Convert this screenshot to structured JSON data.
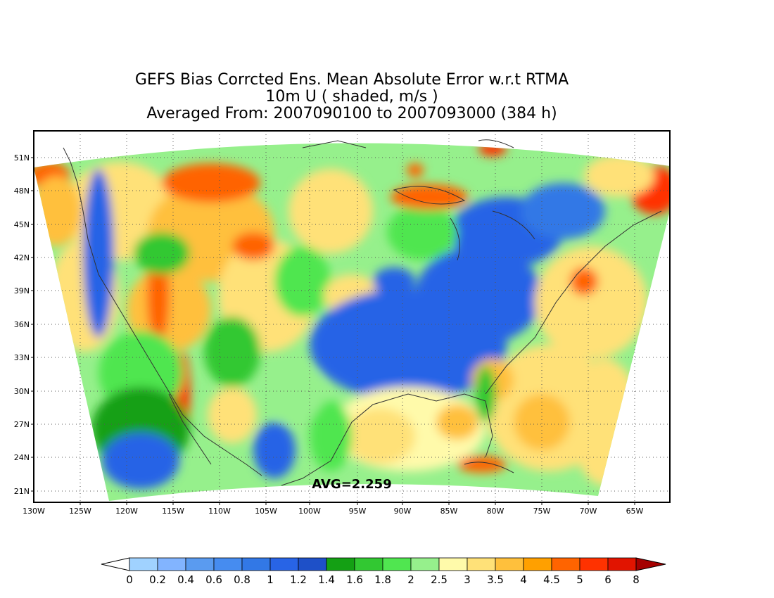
{
  "title": {
    "line1": "GEFS Bias Corrcted Ens. Mean Absolute Error w.r.t RTMA",
    "line2": "10m U ( shaded, m/s )",
    "line3": "Averaged From: 2007090100 to 2007093000 (384 h)"
  },
  "average_label": "AVG=2.259",
  "map": {
    "projection": "lambert-conformal",
    "region": "CONUS",
    "lon_range": [
      -130,
      -62
    ],
    "lat_range": [
      20,
      53
    ],
    "gridlines": true,
    "lat_ticks": [
      "51N",
      "48N",
      "45N",
      "42N",
      "39N",
      "36N",
      "33N",
      "30N",
      "27N",
      "24N",
      "21N"
    ],
    "lat_values": [
      51,
      48,
      45,
      42,
      39,
      36,
      33,
      30,
      27,
      24,
      21
    ],
    "lon_ticks": [
      "130W",
      "125W",
      "120W",
      "115W",
      "110W",
      "105W",
      "100W",
      "95W",
      "90W",
      "85W",
      "80W",
      "75W",
      "70W",
      "65W"
    ],
    "lon_values": [
      -130,
      -125,
      -120,
      -115,
      -110,
      -105,
      -100,
      -95,
      -90,
      -85,
      -80,
      -75,
      -70,
      -65
    ]
  },
  "colorbar": {
    "labels": [
      "0",
      "0.2",
      "0.4",
      "0.6",
      "0.8",
      "1",
      "1.2",
      "1.4",
      "1.6",
      "1.8",
      "2",
      "2.5",
      "3",
      "3.5",
      "4",
      "4.5",
      "5",
      "6",
      "8"
    ],
    "colors": [
      "#a0d2ff",
      "#82b4ff",
      "#5a9bf0",
      "#468cf0",
      "#3278e6",
      "#2864e6",
      "#1e50c8",
      "#14a014",
      "#32c832",
      "#50e650",
      "#96f08c",
      "#fffaaa",
      "#ffe178",
      "#ffc03c",
      "#ffa000",
      "#ff6400",
      "#ff3200",
      "#e11400",
      "#a50000"
    ],
    "under_color": "#ffffff",
    "over_color": "#a50000"
  }
}
